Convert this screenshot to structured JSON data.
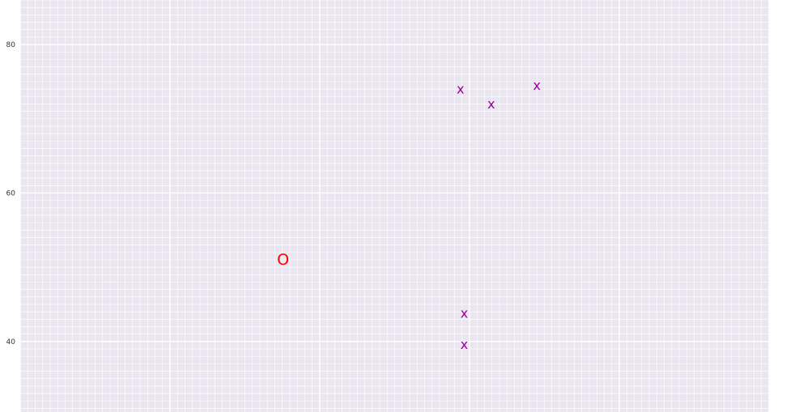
{
  "chart_data": {
    "type": "scatter",
    "title": "",
    "xlabel": "",
    "ylabel": "",
    "xlim": [
      0,
      100
    ],
    "ylim": [
      30.5,
      86
    ],
    "grid": true,
    "x_ticks": [],
    "y_ticks": [
      40,
      60,
      80
    ],
    "y_tick_labels": [
      "40",
      "60",
      "80"
    ],
    "background_color": "#eae6f0",
    "series": [
      {
        "marker": "o",
        "marker_text": "O",
        "color": "#ff0000",
        "points": [
          {
            "x": 35.1,
            "y": 51.0
          }
        ]
      },
      {
        "marker": "x",
        "marker_text": "x",
        "color": "#990099",
        "points": [
          {
            "x": 58.8,
            "y": 74.0
          },
          {
            "x": 62.9,
            "y": 72.0
          },
          {
            "x": 69.0,
            "y": 74.5
          },
          {
            "x": 59.3,
            "y": 43.8
          },
          {
            "x": 59.3,
            "y": 39.6
          }
        ]
      }
    ]
  }
}
